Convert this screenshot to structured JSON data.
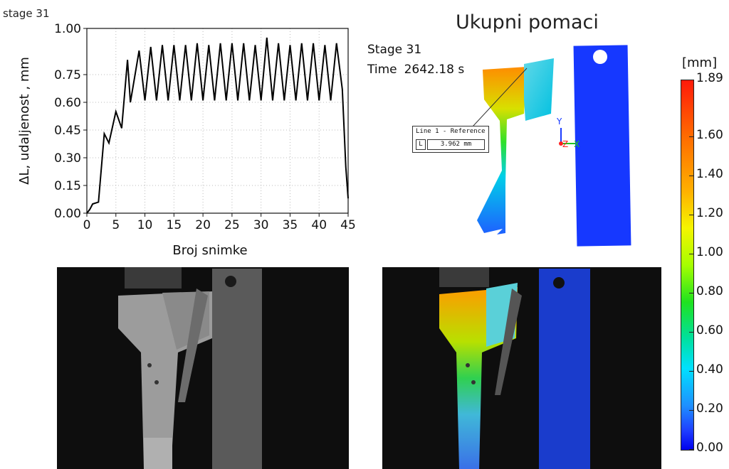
{
  "corner_label": "stage 31",
  "header": {
    "title": "Ukupni pomaci",
    "stage": "Stage 31",
    "time_label": "Time",
    "time_value": "2642.18 s"
  },
  "callout": {
    "line_label": "Line 1 - Reference",
    "measure_key": "L",
    "measure_value": "3.962 mm"
  },
  "axes_glyphs": {
    "y": "Y",
    "z": "Z",
    "x": "X"
  },
  "colorbar": {
    "unit": "[mm]",
    "ticks": [
      "1.89",
      "1.60",
      "1.40",
      "1.20",
      "1.00",
      "0.80",
      "0.60",
      "0.40",
      "0.20",
      "0.00"
    ],
    "colors": {
      "max": "#ff1a0a",
      "mid": "#1fe21f",
      "min": "#0000ee"
    }
  },
  "chart_data": {
    "type": "line",
    "title": "",
    "xlabel": "Broj snimke",
    "ylabel": "ΔL, udaljenost , mm",
    "xlim": [
      0,
      45
    ],
    "ylim": [
      0,
      1.0
    ],
    "xticks": [
      "0",
      "5",
      "10",
      "15",
      "20",
      "25",
      "30",
      "35",
      "40",
      "45"
    ],
    "yticks": [
      "0.00",
      "0.15",
      "0.30",
      "0.45",
      "0.60",
      "0.75",
      "1.00"
    ],
    "ytick_values": [
      0,
      0.15,
      0.3,
      0.45,
      0.6,
      0.75,
      1.0
    ],
    "grid": true,
    "series": [
      {
        "color": "#000000",
        "points": [
          [
            0,
            0.0
          ],
          [
            0.5,
            0.02
          ],
          [
            1,
            0.05
          ],
          [
            2,
            0.06
          ],
          [
            3,
            0.43
          ],
          [
            3.8,
            0.38
          ],
          [
            5,
            0.55
          ],
          [
            6,
            0.46
          ],
          [
            7,
            0.83
          ],
          [
            7.5,
            0.6
          ],
          [
            9,
            0.88
          ],
          [
            10,
            0.61
          ],
          [
            11,
            0.9
          ],
          [
            12,
            0.61
          ],
          [
            13,
            0.91
          ],
          [
            14,
            0.61
          ],
          [
            15,
            0.91
          ],
          [
            16,
            0.61
          ],
          [
            17,
            0.91
          ],
          [
            18,
            0.61
          ],
          [
            19,
            0.92
          ],
          [
            20,
            0.61
          ],
          [
            21,
            0.91
          ],
          [
            22,
            0.61
          ],
          [
            23,
            0.92
          ],
          [
            24,
            0.61
          ],
          [
            25,
            0.92
          ],
          [
            26,
            0.61
          ],
          [
            27,
            0.92
          ],
          [
            28,
            0.61
          ],
          [
            29,
            0.91
          ],
          [
            30,
            0.61
          ],
          [
            31,
            0.95
          ],
          [
            32,
            0.61
          ],
          [
            33,
            0.92
          ],
          [
            34,
            0.61
          ],
          [
            35,
            0.91
          ],
          [
            36,
            0.61
          ],
          [
            37,
            0.92
          ],
          [
            38,
            0.61
          ],
          [
            39,
            0.92
          ],
          [
            40,
            0.61
          ],
          [
            41,
            0.91
          ],
          [
            42,
            0.61
          ],
          [
            43,
            0.92
          ],
          [
            44,
            0.67
          ],
          [
            44.6,
            0.25
          ],
          [
            45,
            0.08
          ]
        ]
      }
    ]
  }
}
